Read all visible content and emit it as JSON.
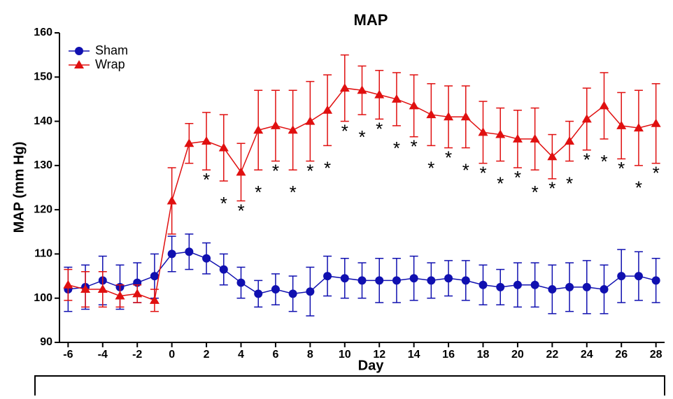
{
  "chart_data": {
    "type": "line",
    "title": "MAP",
    "x_label": "Day",
    "y_label": "MAP (mm Hg)",
    "x": [
      -6,
      -5,
      -4,
      -3,
      -2,
      -1,
      0,
      1,
      2,
      3,
      4,
      5,
      6,
      7,
      8,
      9,
      10,
      11,
      12,
      13,
      14,
      15,
      16,
      17,
      18,
      19,
      20,
      21,
      22,
      23,
      24,
      25,
      26,
      27,
      28
    ],
    "series": [
      {
        "name": "Sham",
        "color": "#1010b0",
        "marker": "circle",
        "values": [
          102,
          102.5,
          104,
          102.5,
          103.5,
          105,
          110,
          110.5,
          109,
          106.5,
          103.5,
          101,
          102,
          101,
          101.5,
          105,
          104.5,
          104,
          104,
          104,
          104.5,
          104,
          104.5,
          104,
          103,
          102.5,
          103,
          103,
          102,
          102.5,
          102.5,
          102,
          105,
          105,
          104
        ],
        "errors": [
          5,
          5,
          5.5,
          5,
          4.5,
          5,
          4,
          4,
          3.5,
          3.5,
          3.5,
          3,
          3.5,
          4,
          5.5,
          4.5,
          4.5,
          4,
          5,
          5,
          5,
          4,
          4,
          4.5,
          4.5,
          4,
          5,
          5,
          5.5,
          5.5,
          6,
          5.5,
          6,
          5.5,
          5
        ]
      },
      {
        "name": "Wrap",
        "color": "#e01010",
        "marker": "triangle",
        "values": [
          103,
          102,
          102,
          100.5,
          101,
          99.5,
          122,
          135,
          135.5,
          134,
          128.5,
          138,
          139,
          138,
          140,
          142.5,
          147.5,
          147,
          146,
          145,
          143.5,
          141.5,
          141,
          141,
          137.5,
          137,
          136,
          136,
          132,
          135.5,
          140.5,
          143.5,
          139,
          138.5,
          139.5
        ],
        "errors": [
          3.5,
          4,
          4,
          2.5,
          2,
          2.5,
          7.5,
          4.5,
          6.5,
          7.5,
          6.5,
          9,
          8,
          9,
          9,
          8,
          7.5,
          5.5,
          5.5,
          6,
          7,
          7,
          7,
          7,
          7,
          6,
          6.5,
          7,
          5,
          4.5,
          7,
          7.5,
          7.5,
          8.5,
          9
        ]
      }
    ],
    "significance_marker": "*",
    "significant_days": [
      2,
      3,
      4,
      5,
      6,
      7,
      8,
      9,
      10,
      11,
      12,
      13,
      14,
      15,
      16,
      17,
      18,
      19,
      20,
      21,
      22,
      23,
      24,
      25,
      26,
      27,
      28
    ],
    "xlim": [
      -6.5,
      28.5
    ],
    "xticks": [
      -6,
      -4,
      -2,
      0,
      2,
      4,
      6,
      8,
      10,
      12,
      14,
      16,
      18,
      20,
      22,
      24,
      26,
      28
    ],
    "ylim": [
      90,
      160
    ],
    "yticks": [
      90,
      100,
      110,
      120,
      130,
      140,
      150,
      160
    ],
    "legend": "upper left"
  }
}
